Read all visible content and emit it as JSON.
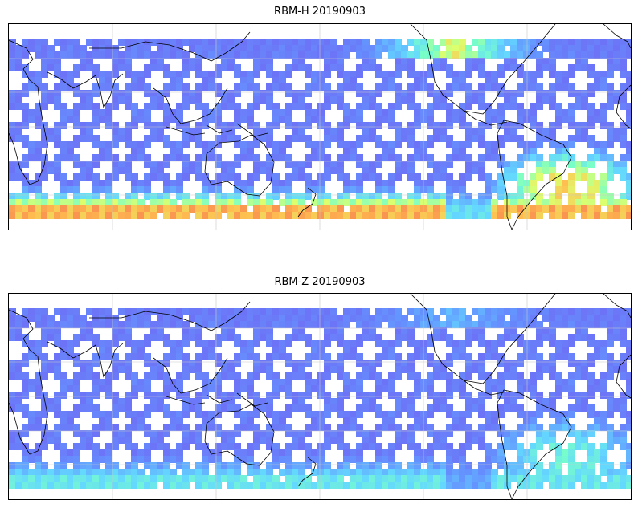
{
  "panels": [
    {
      "title": "RBM-H 20190903",
      "colormap": "jet",
      "hot_regions": [
        {
          "region": "southern-band",
          "level": 0.85
        },
        {
          "region": "north-atlantic",
          "level": 0.75
        },
        {
          "region": "south-atlantic",
          "level": 0.8
        }
      ]
    },
    {
      "title": "RBM-Z 20190903",
      "colormap": "jet",
      "hot_regions": [
        {
          "region": "southern-band",
          "level": 0.5
        },
        {
          "region": "north-atlantic",
          "level": 0.35
        },
        {
          "region": "south-atlantic",
          "level": 0.55
        }
      ]
    }
  ],
  "map": {
    "projection": "equirectangular",
    "central_longitude": 150,
    "gridlines": true,
    "coastlines": true
  },
  "colors": {
    "low": "#6b6bf5",
    "mid": "#66ccff",
    "high": "#ff5555",
    "coast": "#000000",
    "grid": "#c8c8c8"
  }
}
